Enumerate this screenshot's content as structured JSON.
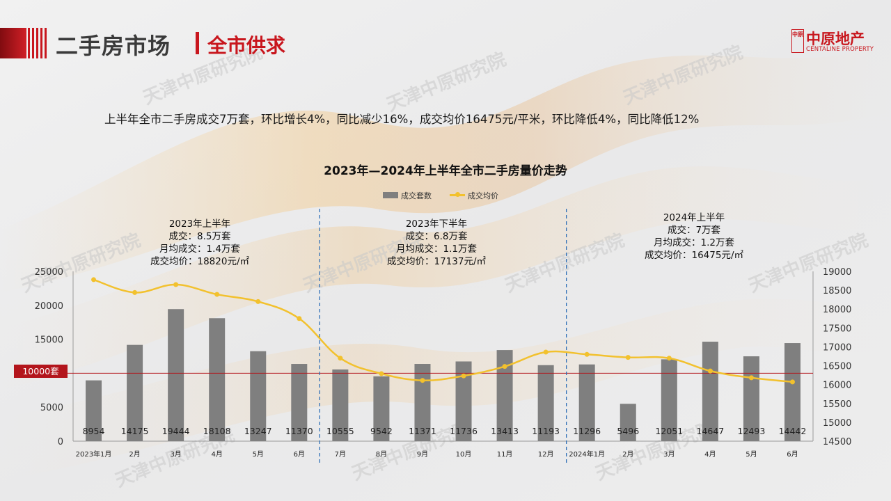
{
  "header": {
    "title": "二手房市场",
    "subtitle": "全市供求",
    "logo_cn": "中原地产",
    "logo_en": "CENTALINE PROPERTY",
    "logo_seal": "中原"
  },
  "summary": "上半年全市二手房成交7万套，环比增长4%，同比减少16%，成交均价16475元/平米，环比降低4%，同比降低12%",
  "watermark": "天津中原研究院",
  "reference_line": {
    "label": "10000套",
    "value": 10000
  },
  "periods": [
    {
      "lines": [
        "2023年上半年",
        "成交：8.5万套",
        "月均成交：1.4万套",
        "成交均价：18820元/㎡"
      ]
    },
    {
      "lines": [
        "2023年下半年",
        "成交：6.8万套",
        "月均成交：1.1万套",
        "成交均价：17137元/㎡"
      ]
    },
    {
      "lines": [
        "2024年上半年",
        "成交：7万套",
        "月均成交：1.2万套",
        "成交均价：16475元/㎡"
      ]
    }
  ],
  "colors": {
    "bar": "#7f7f7f",
    "line": "#f2c12e",
    "accent": "#c8161d",
    "divider": "#2e6fb7"
  },
  "chart_data": {
    "type": "bar+line",
    "title": "2023年—2024年上半年全市二手房量价走势",
    "categories": [
      "2023年1月",
      "2月",
      "3月",
      "4月",
      "5月",
      "6月",
      "7月",
      "8月",
      "9月",
      "10月",
      "11月",
      "12月",
      "2024年1月",
      "2月",
      "3月",
      "4月",
      "5月",
      "6月"
    ],
    "series": [
      {
        "name": "成交套数",
        "type": "bar",
        "axis": "left",
        "values": [
          8954,
          14175,
          19444,
          18108,
          13247,
          11370,
          10555,
          9542,
          11371,
          11736,
          13413,
          11193,
          11296,
          5496,
          12051,
          14647,
          12493,
          14442
        ]
      },
      {
        "name": "成交均价",
        "type": "line",
        "axis": "right",
        "values": [
          18780,
          18440,
          18650,
          18390,
          18200,
          17750,
          16700,
          16290,
          16110,
          16230,
          16480,
          16860,
          16800,
          16720,
          16700,
          16360,
          16180,
          16070
        ]
      }
    ],
    "y_left": {
      "min": 0,
      "max": 25000,
      "ticks": [
        0,
        5000,
        10000,
        15000,
        20000,
        25000
      ]
    },
    "y_right": {
      "min": 14500,
      "max": 19000,
      "ticks": [
        14500,
        15000,
        15500,
        16000,
        16500,
        17000,
        17500,
        18000,
        18500,
        19000
      ]
    },
    "legend_position": "top-center",
    "data_labels": "bottom-inside",
    "period_dividers_after": [
      5,
      11
    ]
  }
}
